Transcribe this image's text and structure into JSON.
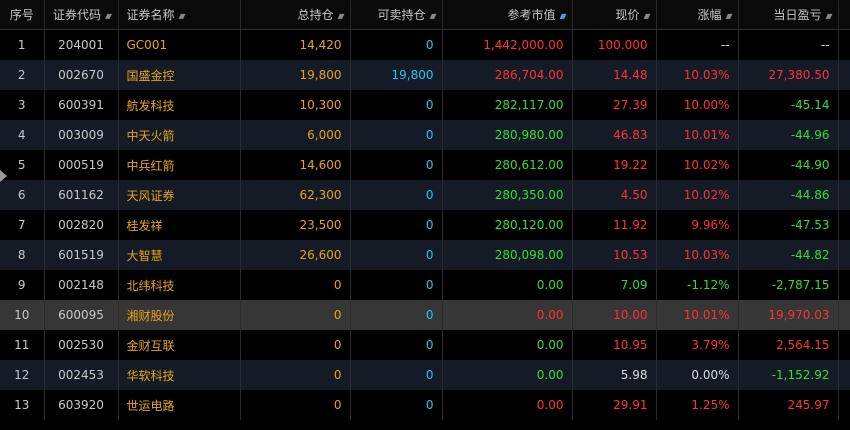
{
  "colors": {
    "background": "#000000",
    "row_alt": "#141b26",
    "row_selected": "#363636",
    "text_name": "#e8a317",
    "text_available": "#1ec8f0",
    "up": "#ff3333",
    "down": "#33dd33",
    "neutral": "#dcdcdc"
  },
  "headers": {
    "seq": "序号",
    "code": "证券代码",
    "name": "证券名称",
    "total": "总持仓",
    "available": "可卖持仓",
    "value": "参考市值",
    "price": "现价",
    "change": "涨幅",
    "pnl": "当日盈亏"
  },
  "sort_icons": {
    "code": "sort-updown-icon",
    "name": "sort-updown-icon",
    "total": "sort-updown-icon",
    "available": "sort-updown-icon",
    "value": "sort-active-icon",
    "price": "sort-updown-icon",
    "change": "sort-updown-icon",
    "pnl": "sort-updown-icon"
  },
  "selected_row": 9,
  "rows": [
    {
      "seq": "1",
      "code": "204001",
      "name": "GC001",
      "total": "14,420",
      "available": "0",
      "value": "1,442,000.00",
      "value_color": "up",
      "price": "100.000",
      "price_color": "up",
      "change": "--",
      "change_color": "neutral",
      "pnl": "--",
      "pnl_color": "neutral"
    },
    {
      "seq": "2",
      "code": "002670",
      "name": "国盛金控",
      "total": "19,800",
      "available": "19,800",
      "value": "286,704.00",
      "value_color": "up",
      "price": "14.48",
      "price_color": "up",
      "change": "10.03%",
      "change_color": "up",
      "pnl": "27,380.50",
      "pnl_color": "up"
    },
    {
      "seq": "3",
      "code": "600391",
      "name": "航发科技",
      "total": "10,300",
      "available": "0",
      "value": "282,117.00",
      "value_color": "down",
      "price": "27.39",
      "price_color": "up",
      "change": "10.00%",
      "change_color": "up",
      "pnl": "-45.14",
      "pnl_color": "down"
    },
    {
      "seq": "4",
      "code": "003009",
      "name": "中天火箭",
      "total": "6,000",
      "available": "0",
      "value": "280,980.00",
      "value_color": "down",
      "price": "46.83",
      "price_color": "up",
      "change": "10.01%",
      "change_color": "up",
      "pnl": "-44.96",
      "pnl_color": "down"
    },
    {
      "seq": "5",
      "code": "000519",
      "name": "中兵红箭",
      "total": "14,600",
      "available": "0",
      "value": "280,612.00",
      "value_color": "down",
      "price": "19.22",
      "price_color": "up",
      "change": "10.02%",
      "change_color": "up",
      "pnl": "-44.90",
      "pnl_color": "down"
    },
    {
      "seq": "6",
      "code": "601162",
      "name": "天风证券",
      "total": "62,300",
      "available": "0",
      "value": "280,350.00",
      "value_color": "down",
      "price": "4.50",
      "price_color": "up",
      "change": "10.02%",
      "change_color": "up",
      "pnl": "-44.86",
      "pnl_color": "down"
    },
    {
      "seq": "7",
      "code": "002820",
      "name": "桂发祥",
      "total": "23,500",
      "available": "0",
      "value": "280,120.00",
      "value_color": "down",
      "price": "11.92",
      "price_color": "up",
      "change": "9.96%",
      "change_color": "up",
      "pnl": "-47.53",
      "pnl_color": "down"
    },
    {
      "seq": "8",
      "code": "601519",
      "name": "大智慧",
      "total": "26,600",
      "available": "0",
      "value": "280,098.00",
      "value_color": "down",
      "price": "10.53",
      "price_color": "up",
      "change": "10.03%",
      "change_color": "up",
      "pnl": "-44.82",
      "pnl_color": "down"
    },
    {
      "seq": "9",
      "code": "002148",
      "name": "北纬科技",
      "total": "0",
      "available": "0",
      "value": "0.00",
      "value_color": "down",
      "price": "7.09",
      "price_color": "down",
      "change": "-1.12%",
      "change_color": "down",
      "pnl": "-2,787.15",
      "pnl_color": "down"
    },
    {
      "seq": "10",
      "code": "600095",
      "name": "湘财股份",
      "total": "0",
      "available": "0",
      "value": "0.00",
      "value_color": "up",
      "price": "10.00",
      "price_color": "up",
      "change": "10.01%",
      "change_color": "up",
      "pnl": "19,970.03",
      "pnl_color": "up"
    },
    {
      "seq": "11",
      "code": "002530",
      "name": "金财互联",
      "total": "0",
      "available": "0",
      "value": "0.00",
      "value_color": "down",
      "price": "10.95",
      "price_color": "up",
      "change": "3.79%",
      "change_color": "up",
      "pnl": "2,564.15",
      "pnl_color": "up"
    },
    {
      "seq": "12",
      "code": "002453",
      "name": "华软科技",
      "total": "0",
      "available": "0",
      "value": "0.00",
      "value_color": "down",
      "price": "5.98",
      "price_color": "neutral",
      "change": "0.00%",
      "change_color": "neutral",
      "pnl": "-1,152.92",
      "pnl_color": "down"
    },
    {
      "seq": "13",
      "code": "603920",
      "name": "世运电路",
      "total": "0",
      "available": "0",
      "value": "0.00",
      "value_color": "up",
      "price": "29.91",
      "price_color": "up",
      "change": "1.25%",
      "change_color": "up",
      "pnl": "245.97",
      "pnl_color": "up"
    }
  ]
}
